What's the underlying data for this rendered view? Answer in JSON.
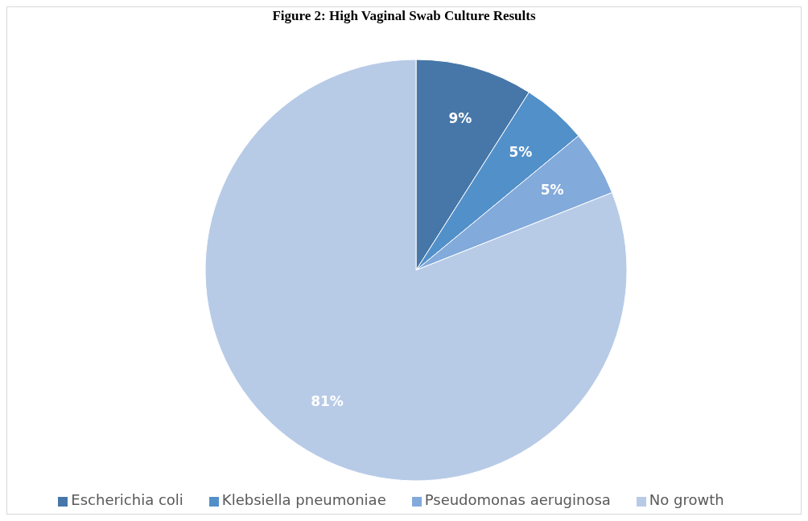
{
  "chart_data": {
    "type": "pie",
    "title": "Figure 2: High Vaginal Swab Culture Results",
    "categories": [
      "Escherichia coli",
      "Klebsiella pneumoniae",
      "Pseudomonas aeruginosa",
      "No growth"
    ],
    "values": [
      9,
      5,
      5,
      81
    ],
    "value_labels": [
      "9%",
      "5%",
      "5%",
      "81%"
    ],
    "colors": [
      "#4677a8",
      "#5290c9",
      "#82aadb",
      "#b7cbe7"
    ],
    "legend": "bottom"
  }
}
